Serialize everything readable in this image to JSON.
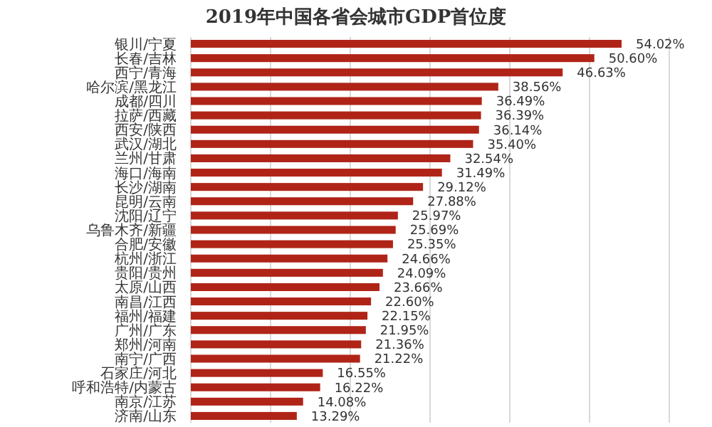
{
  "chart_data": {
    "type": "bar",
    "orientation": "horizontal",
    "title": "2019年中国各省会城市GDP首位度",
    "categories": [
      "银川/宁夏",
      "长春/吉林",
      "西宁/青海",
      "哈尔滨/黑龙江",
      "成都/四川",
      "拉萨/西藏",
      "西安/陕西",
      "武汉/湖北",
      "兰州/甘肃",
      "海口/海南",
      "长沙/湖南",
      "昆明/云南",
      "沈阳/辽宁",
      "乌鲁木齐/新疆",
      "合肥/安徽",
      "杭州/浙江",
      "贵阳/贵州",
      "太原/山西",
      "南昌/江西",
      "福州/福建",
      "广州/广东",
      "郑州/河南",
      "南宁/广西",
      "石家庄/河北",
      "呼和浩特/内蒙古",
      "南京/江苏",
      "济南/山东"
    ],
    "values": [
      54.02,
      50.6,
      46.63,
      38.56,
      36.49,
      36.39,
      36.14,
      35.4,
      32.54,
      31.49,
      29.12,
      27.88,
      25.97,
      25.69,
      25.35,
      24.66,
      24.09,
      23.66,
      22.6,
      22.15,
      21.95,
      21.36,
      21.22,
      16.55,
      16.22,
      14.08,
      13.29
    ],
    "value_labels": [
      "54.02%",
      "50.60%",
      "46.63%",
      "38.56%",
      "36.49%",
      "36.39%",
      "36.14%",
      "35.40%",
      "32.54%",
      "31.49%",
      "29.12%",
      "27.88%",
      "25.97%",
      "25.69%",
      "25.35%",
      "24.66%",
      "24.09%",
      "23.66%",
      "22.60%",
      "22.15%",
      "21.95%",
      "21.36%",
      "21.22%",
      "16.55%",
      "16.22%",
      "14.08%",
      "13.29%"
    ],
    "color": "#b02418",
    "xlim": [
      0,
      60
    ],
    "xticks": [
      {
        "value": 0,
        "label": null
      },
      {
        "value": 10,
        "label": null
      },
      {
        "value": 20,
        "label": null
      },
      {
        "value": 30,
        "label": null
      },
      {
        "value": 40,
        "label": null
      },
      {
        "value": 50,
        "label": null
      },
      {
        "value": 60,
        "label": null
      }
    ],
    "grid": "x",
    "tick_labels": "y"
  }
}
